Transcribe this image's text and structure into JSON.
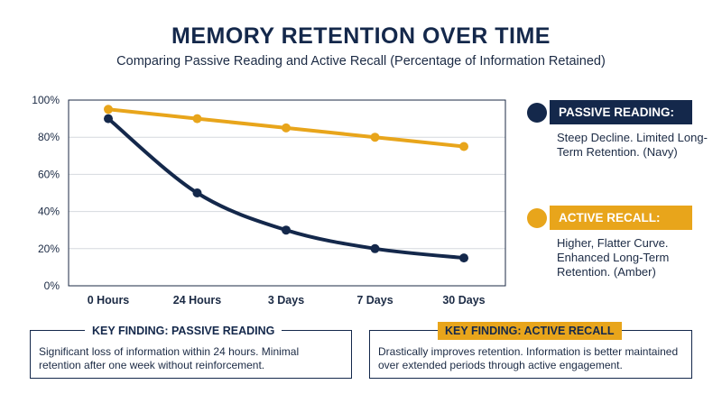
{
  "header": {
    "title": "MEMORY RETENTION OVER TIME",
    "subtitle": "Comparing Passive Reading and Active Recall (Percentage of Information Retained)"
  },
  "colors": {
    "navy": "#14284b",
    "amber": "#e8a51b",
    "grid": "#d6d9de"
  },
  "chart_data": {
    "type": "line",
    "categories": [
      "0 Hours",
      "24 Hours",
      "3 Days",
      "7 Days",
      "30 Days"
    ],
    "series": [
      {
        "name": "PASSIVE READING",
        "color": "#14284b",
        "values": [
          90,
          50,
          30,
          20,
          15
        ]
      },
      {
        "name": "ACTIVE RECALL",
        "color": "#e8a51b",
        "values": [
          95,
          90,
          85,
          80,
          75
        ]
      }
    ],
    "y_ticks": [
      "0%",
      "20%",
      "40%",
      "60%",
      "80%",
      "100%"
    ],
    "ylim": [
      0,
      100
    ],
    "grid": true,
    "legend_position": "right"
  },
  "legend": {
    "passive": {
      "label": "PASSIVE READING:",
      "desc": "Steep Decline. Limited Long-Term Retention. (Navy)"
    },
    "active": {
      "label": "ACTIVE RECALL:",
      "desc": "Higher, Flatter Curve. Enhanced Long-Term Retention. (Amber)"
    }
  },
  "findings": {
    "passive": {
      "label": "KEY FINDING: PASSIVE READING",
      "text": "Significant loss of information within 24 hours. Minimal retention after one week without reinforcement."
    },
    "active": {
      "label": "KEY FINDING: ACTIVE RECALL",
      "text": "Drastically improves retention. Information is better maintained over extended periods through active engagement."
    }
  }
}
